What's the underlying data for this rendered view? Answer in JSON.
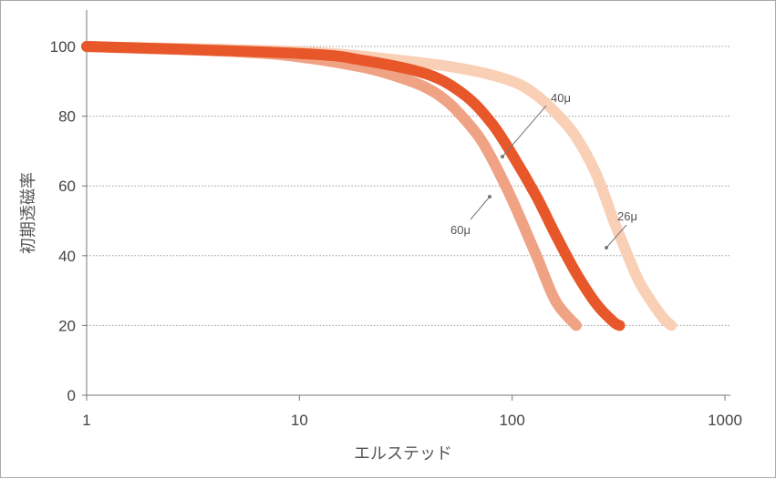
{
  "chart_data": {
    "type": "line",
    "title": "",
    "xlabel": "エルステッド",
    "ylabel": "初期透磁率",
    "xscale": "log",
    "xlim": [
      1,
      1000
    ],
    "ylim": [
      0,
      100
    ],
    "x_ticks": [
      "1",
      "10",
      "100",
      "1000"
    ],
    "y_ticks": [
      "0",
      "20",
      "40",
      "60",
      "80",
      "100"
    ],
    "grid": "horizontal dotted",
    "series": [
      {
        "name": "60μ",
        "color": "#f0a284",
        "x": [
          1,
          5,
          10,
          20,
          30,
          40,
          50,
          60,
          70,
          80,
          100,
          130,
          160,
          200
        ],
        "y": [
          100,
          98.5,
          97,
          94,
          91,
          88,
          84,
          79,
          74,
          68,
          56,
          40,
          27,
          20
        ]
      },
      {
        "name": "40μ",
        "color": "#e8572a",
        "x": [
          1,
          10,
          20,
          40,
          60,
          80,
          100,
          130,
          160,
          200,
          250,
          300,
          320
        ],
        "y": [
          100,
          98,
          96,
          92,
          86,
          78,
          69,
          57,
          46,
          35,
          26,
          21,
          20
        ]
      },
      {
        "name": "26μ",
        "color": "#f9cfb6",
        "x": [
          1,
          10,
          30,
          60,
          100,
          130,
          160,
          200,
          250,
          300,
          350,
          400,
          500,
          560
        ],
        "y": [
          100,
          98.5,
          96,
          93.5,
          90,
          86,
          81,
          74,
          63,
          50,
          40,
          32,
          23,
          20
        ]
      }
    ],
    "annotations": [
      "40μ",
      "60μ",
      "26μ"
    ]
  }
}
